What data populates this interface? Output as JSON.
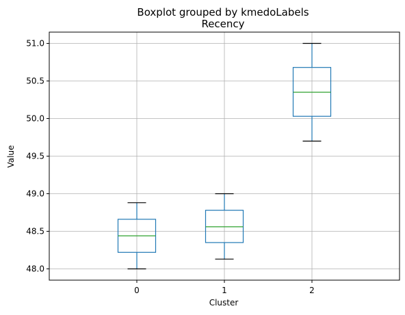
{
  "chart_data": {
    "type": "boxplot",
    "suptitle": "Boxplot grouped by kmedoLabels",
    "title": "Recency",
    "xlabel": "Cluster",
    "ylabel": "Value",
    "categories": [
      "0",
      "1",
      "2"
    ],
    "ylim": [
      47.85,
      51.15
    ],
    "yticks": [
      48.0,
      48.5,
      49.0,
      49.5,
      50.0,
      50.5,
      51.0
    ],
    "ytick_labels": [
      "48.0",
      "48.5",
      "49.0",
      "49.5",
      "50.0",
      "50.5",
      "51.0"
    ],
    "grid": true,
    "boxes": [
      {
        "category": "0",
        "whisker_low": 48.0,
        "q1": 48.22,
        "median": 48.44,
        "q3": 48.66,
        "whisker_high": 48.88
      },
      {
        "category": "1",
        "whisker_low": 48.13,
        "q1": 48.35,
        "median": 48.56,
        "q3": 48.78,
        "whisker_high": 49.0
      },
      {
        "category": "2",
        "whisker_low": 49.7,
        "q1": 50.03,
        "median": 50.35,
        "q3": 50.68,
        "whisker_high": 51.0
      }
    ],
    "colors": {
      "box": "#1f77b4",
      "median": "#2ca02c",
      "whisker_cap": "#000000",
      "grid": "#b0b0b0"
    }
  }
}
